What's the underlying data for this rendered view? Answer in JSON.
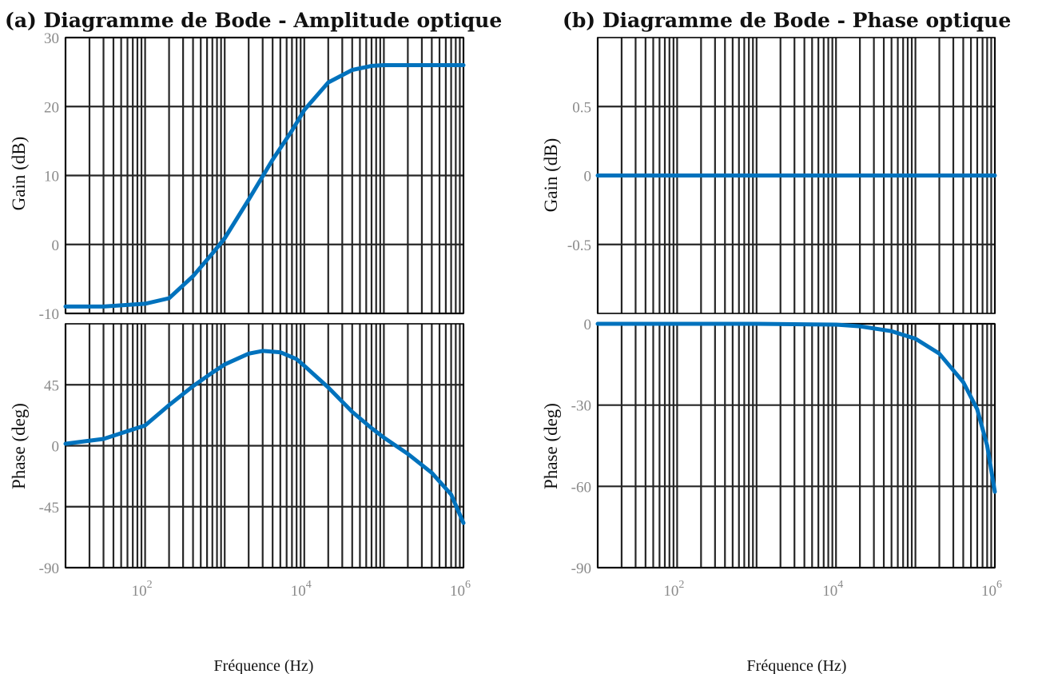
{
  "colors": {
    "line": "#0072bd",
    "grid": "#262626",
    "axis": "#000000",
    "tick_text": "#8a8a8a"
  },
  "chart_data": [
    {
      "panel": "a",
      "title": "(a) Diagramme de Bode - Amplitude optique",
      "xlabel": "Fréquence  (Hz)",
      "xscale": "log",
      "xlim": [
        10,
        1000000
      ],
      "x_ticks": [
        {
          "base": "10",
          "exp": "2"
        },
        {
          "base": "10",
          "exp": "4"
        },
        {
          "base": "10",
          "exp": "6"
        }
      ],
      "grid": true,
      "subplots": [
        {
          "name": "magnitude",
          "type": "line",
          "ylabel": "Gain (dB)",
          "ylim": [
            -10,
            30
          ],
          "y_ticks": [
            "30",
            "20",
            "10",
            "0",
            "-10"
          ],
          "y_tick_values": [
            30,
            20,
            10,
            0,
            -10
          ],
          "series": [
            {
              "x": [
                10,
                30,
                100,
                200,
                400,
                700,
                1000,
                2000,
                4000,
                7000,
                10000,
                20000,
                40000,
                70000,
                100000,
                300000,
                1000000
              ],
              "y": [
                -9,
                -9,
                -8.6,
                -7.8,
                -4.6,
                -1.3,
                0.9,
                6.5,
                12.3,
                16.5,
                19.5,
                23.5,
                25.3,
                25.9,
                26,
                26,
                26
              ]
            }
          ]
        },
        {
          "name": "phase",
          "type": "line",
          "ylabel": "Phase (deg)",
          "ylim": [
            -90,
            90
          ],
          "y_ticks": [
            "45",
            "0",
            "-45",
            "-90"
          ],
          "y_tick_values": [
            45,
            0,
            -45,
            -90
          ],
          "series": [
            {
              "x": [
                10,
                30,
                100,
                200,
                400,
                700,
                1000,
                2000,
                3000,
                5000,
                8000,
                10000,
                20000,
                40000,
                70000,
                100000,
                200000,
                400000,
                700000,
                1000000
              ],
              "y": [
                1.5,
                5,
                15,
                30,
                44,
                54,
                60,
                68,
                70,
                69,
                64,
                59,
                43,
                25,
                13,
                6,
                -6,
                -20,
                -36,
                -57
              ]
            }
          ]
        }
      ]
    },
    {
      "panel": "b",
      "title": "(b) Diagramme de Bode - Phase optique",
      "xlabel": "Fréquence  (Hz)",
      "xscale": "log",
      "xlim": [
        10,
        1000000
      ],
      "x_ticks": [
        {
          "base": "10",
          "exp": "2"
        },
        {
          "base": "10",
          "exp": "4"
        },
        {
          "base": "10",
          "exp": "6"
        }
      ],
      "grid": true,
      "subplots": [
        {
          "name": "magnitude",
          "type": "line",
          "ylabel": "Gain (dB)",
          "ylim": [
            -1,
            1
          ],
          "y_ticks": [
            "0.5",
            "0",
            "-0.5"
          ],
          "y_tick_values": [
            0.5,
            0,
            -0.5
          ],
          "series": [
            {
              "x": [
                10,
                1000000
              ],
              "y": [
                0,
                0
              ]
            }
          ]
        },
        {
          "name": "phase",
          "type": "line",
          "ylabel": "Phase (deg)",
          "ylim": [
            -90,
            0
          ],
          "y_ticks": [
            "0",
            "-30",
            "-60",
            "-90"
          ],
          "y_tick_values": [
            0,
            -30,
            -60,
            -90
          ],
          "series": [
            {
              "x": [
                10,
                100,
                1000,
                10000,
                20000,
                50000,
                100000,
                200000,
                400000,
                600000,
                800000,
                1000000
              ],
              "y": [
                0,
                0,
                0,
                -0.3,
                -0.9,
                -2.7,
                -5.5,
                -11,
                -21.5,
                -31.5,
                -45,
                -62
              ]
            }
          ]
        }
      ]
    }
  ]
}
